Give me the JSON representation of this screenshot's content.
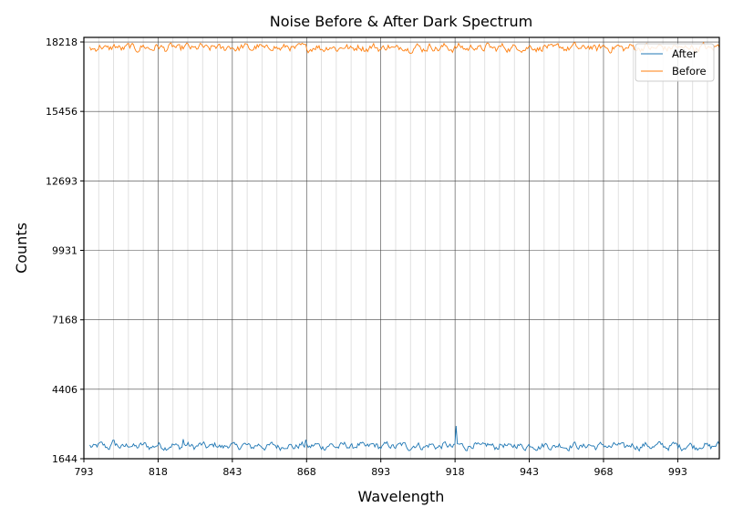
{
  "chart_data": {
    "type": "line",
    "title": "Noise Before & After Dark Spectrum",
    "xlabel": "Wavelength",
    "ylabel": "Counts",
    "xlim": [
      793,
      1007
    ],
    "ylim": [
      1644,
      18400
    ],
    "x_ticks": [
      "793",
      "818",
      "843",
      "868",
      "893",
      "918",
      "943",
      "968",
      "993"
    ],
    "y_ticks": [
      "1644",
      "4406",
      "7168",
      "9931",
      "12693",
      "15456",
      "18218"
    ],
    "grid": true,
    "legend_position": "top-right",
    "series": [
      {
        "name": "After",
        "color": "#1f77b4",
        "mean": 2150,
        "noise": 130,
        "spikes": [
          [
            918.5,
            2950
          ],
          [
            867.7,
            2400
          ],
          [
            826.5,
            2420
          ],
          [
            803.0,
            2380
          ]
        ]
      },
      {
        "name": "Before",
        "color": "#ff7f0e",
        "mean": 17990,
        "noise": 140,
        "spikes": []
      }
    ],
    "x_range": [
      795,
      1007
    ],
    "point_count": 520
  }
}
